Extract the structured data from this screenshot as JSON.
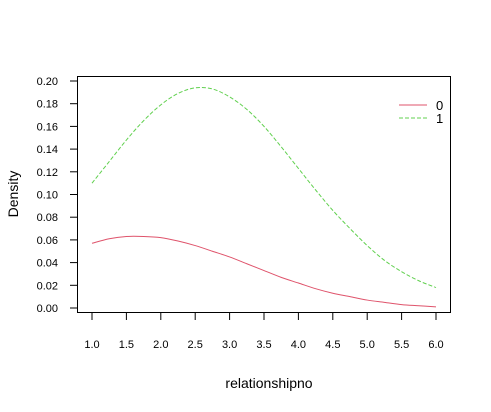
{
  "chart_data": {
    "type": "line",
    "title": "",
    "xlabel": "relationshipno",
    "ylabel": "Density",
    "xlim": [
      1.0,
      6.0
    ],
    "ylim": [
      0.0,
      0.2
    ],
    "x_ticks": [
      "1.0",
      "1.5",
      "2.0",
      "2.5",
      "3.0",
      "3.5",
      "4.0",
      "4.5",
      "5.0",
      "5.5",
      "6.0"
    ],
    "y_ticks": [
      "0.00",
      "0.02",
      "0.04",
      "0.06",
      "0.08",
      "0.10",
      "0.12",
      "0.14",
      "0.16",
      "0.18",
      "0.20"
    ],
    "grid": false,
    "legend_position": "top-right",
    "series": [
      {
        "name": "0",
        "color": "#df536b",
        "line_style": "solid",
        "x": [
          1.0,
          1.25,
          1.5,
          1.75,
          2.0,
          2.25,
          2.5,
          2.75,
          3.0,
          3.25,
          3.5,
          3.75,
          4.0,
          4.25,
          4.5,
          4.75,
          5.0,
          5.25,
          5.5,
          5.75,
          6.0
        ],
        "y": [
          0.057,
          0.061,
          0.063,
          0.063,
          0.062,
          0.059,
          0.055,
          0.05,
          0.045,
          0.039,
          0.033,
          0.027,
          0.022,
          0.017,
          0.013,
          0.01,
          0.007,
          0.005,
          0.003,
          0.002,
          0.001
        ]
      },
      {
        "name": "1",
        "color": "#61d04f",
        "line_style": "dashed",
        "x": [
          1.0,
          1.25,
          1.5,
          1.75,
          2.0,
          2.25,
          2.5,
          2.75,
          3.0,
          3.25,
          3.5,
          3.75,
          4.0,
          4.25,
          4.5,
          4.75,
          5.0,
          5.25,
          5.5,
          5.75,
          6.0
        ],
        "y": [
          0.11,
          0.129,
          0.148,
          0.165,
          0.179,
          0.189,
          0.194,
          0.193,
          0.186,
          0.175,
          0.16,
          0.142,
          0.123,
          0.104,
          0.086,
          0.07,
          0.055,
          0.042,
          0.032,
          0.024,
          0.018
        ]
      }
    ]
  }
}
